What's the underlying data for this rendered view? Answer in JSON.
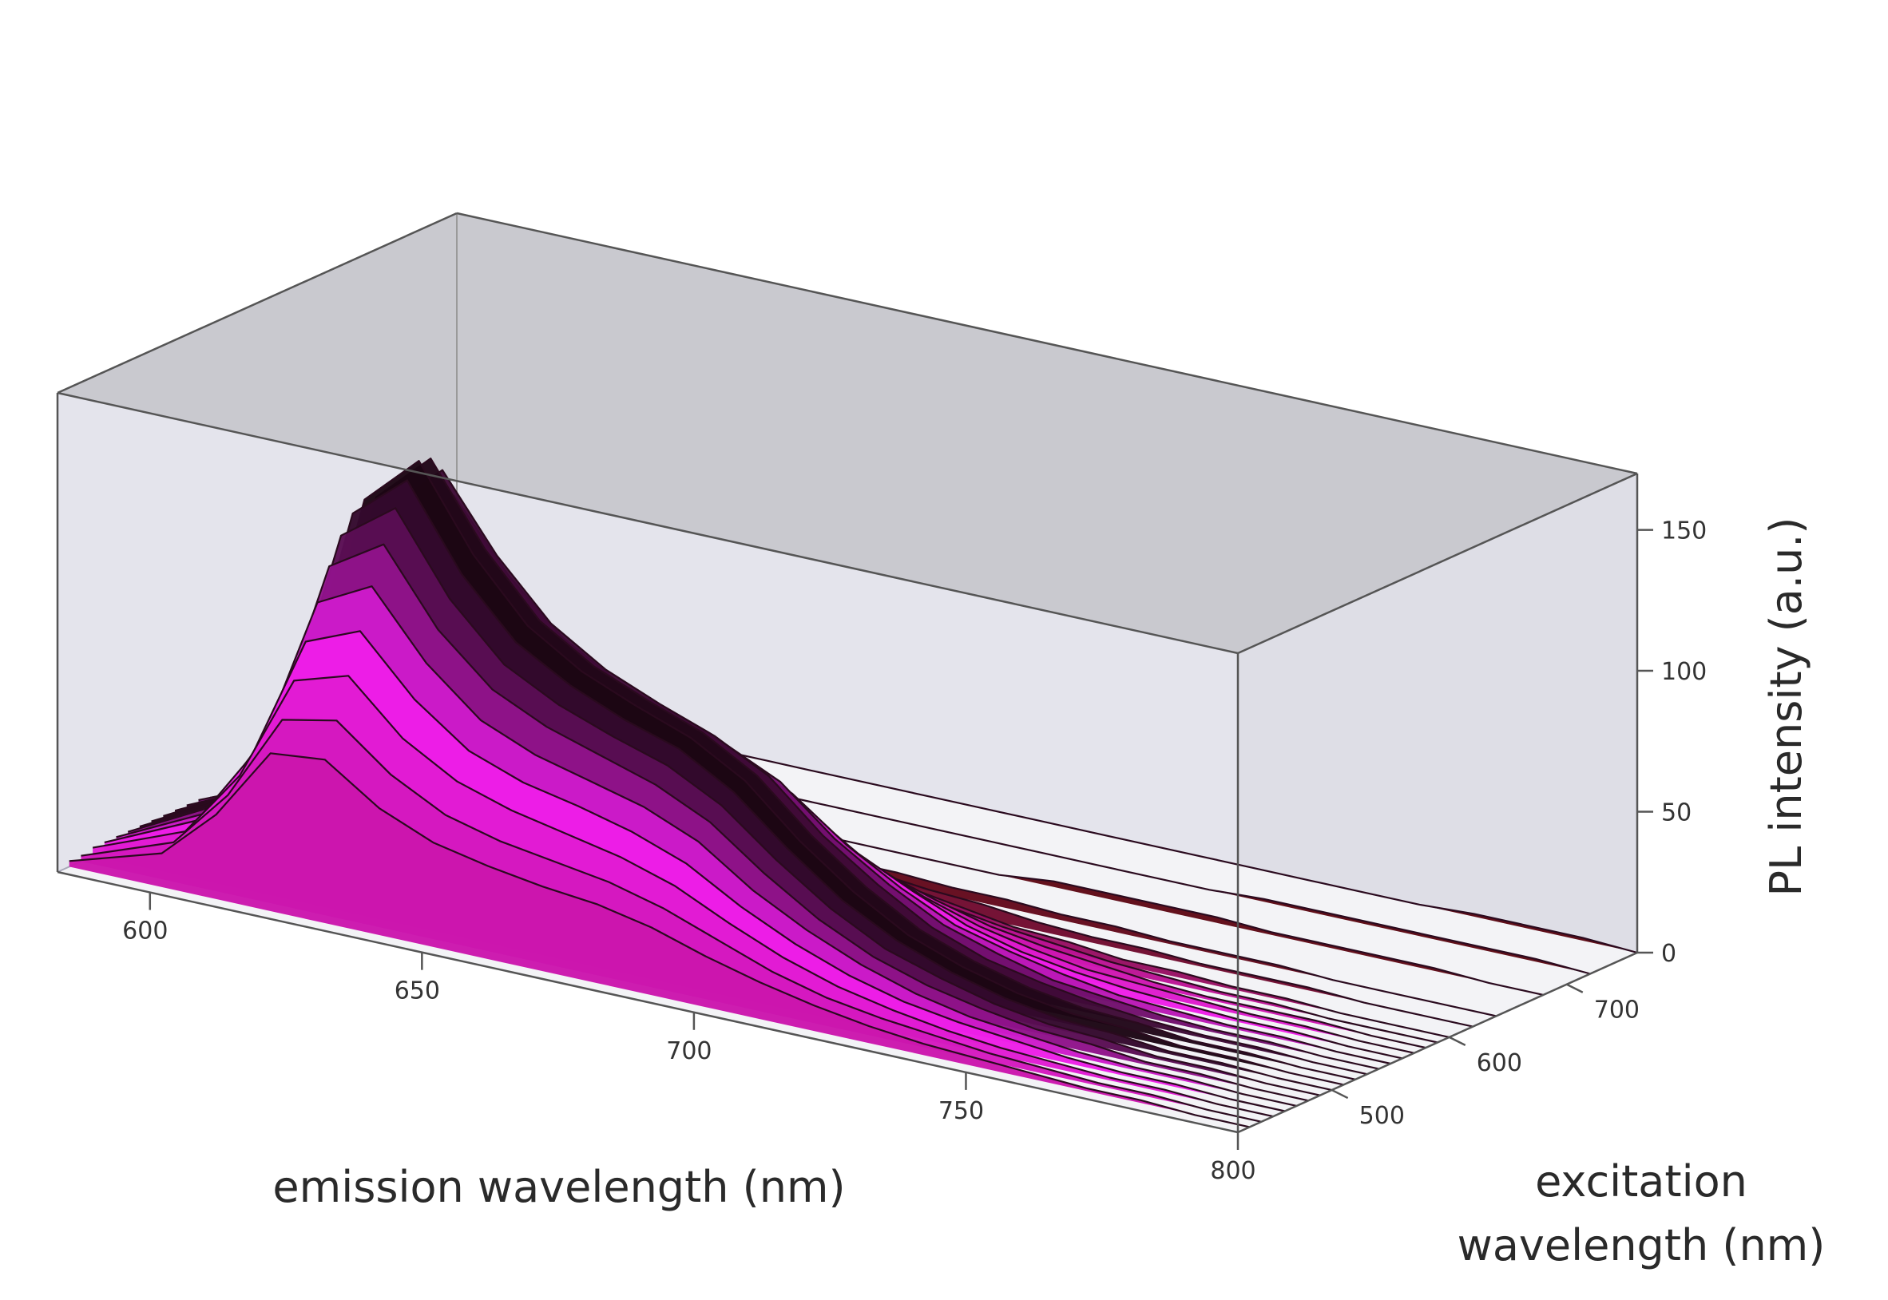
{
  "chart_data": {
    "type": "surface",
    "x_axis": {
      "title": "emission wavelength (nm)",
      "range": [
        583,
        800
      ],
      "ticks": [
        600,
        650,
        700,
        750,
        800
      ],
      "tick_labels": [
        "600",
        "650",
        "700",
        "750",
        "800"
      ]
    },
    "y_axis": {
      "title": "excitation wavelength (nm)",
      "title_lines": [
        "excitation",
        "wavelength (nm)"
      ],
      "range": [
        420,
        760
      ],
      "ticks": [
        500,
        600,
        700
      ],
      "tick_labels": [
        "500",
        "600",
        "700"
      ]
    },
    "z_axis": {
      "title": "PL intensity (a.u.)",
      "range": [
        0,
        170
      ],
      "ticks": [
        0,
        50,
        100,
        150
      ],
      "tick_labels": [
        "0",
        "50",
        "100",
        "150"
      ]
    },
    "series": [
      {
        "excitation": 430,
        "emission": [
          583,
          600,
          610,
          620,
          630,
          640,
          650,
          660,
          670,
          680,
          690,
          700,
          710,
          720,
          730,
          740,
          750,
          760,
          770,
          780,
          790,
          800
        ],
        "intensity": [
          2,
          12,
          30,
          56,
          58,
          45,
          37,
          33,
          30,
          28,
          24,
          18,
          13,
          9,
          6,
          4,
          3,
          2,
          1,
          1,
          0,
          0
        ]
      },
      {
        "excitation": 440,
        "emission": [
          583,
          600,
          610,
          620,
          630,
          640,
          650,
          660,
          670,
          680,
          690,
          700,
          710,
          720,
          730,
          740,
          750,
          760,
          770,
          780,
          790,
          800
        ],
        "intensity": [
          2,
          14,
          35,
          66,
          70,
          55,
          45,
          40,
          37,
          34,
          29,
          22,
          15,
          10,
          7,
          5,
          3,
          2,
          1,
          1,
          0,
          0
        ]
      },
      {
        "excitation": 450,
        "emission": [
          583,
          600,
          610,
          620,
          630,
          640,
          650,
          660,
          670,
          680,
          690,
          700,
          710,
          720,
          730,
          740,
          750,
          760,
          770,
          780,
          790,
          800
        ],
        "intensity": [
          3,
          16,
          40,
          78,
          84,
          66,
          55,
          49,
          45,
          41,
          35,
          26,
          18,
          12,
          8,
          5,
          3,
          2,
          1,
          1,
          0,
          0
        ]
      },
      {
        "excitation": 460,
        "emission": [
          583,
          600,
          610,
          620,
          630,
          640,
          650,
          660,
          670,
          680,
          690,
          700,
          710,
          720,
          730,
          740,
          750,
          760,
          770,
          780,
          790,
          800
        ],
        "intensity": [
          3,
          18,
          45,
          90,
          98,
          78,
          64,
          57,
          53,
          48,
          41,
          30,
          21,
          14,
          9,
          6,
          4,
          2,
          1,
          1,
          0,
          0
        ]
      },
      {
        "excitation": 470,
        "emission": [
          583,
          600,
          610,
          620,
          630,
          640,
          650,
          660,
          670,
          680,
          690,
          700,
          710,
          720,
          730,
          740,
          750,
          760,
          770,
          780,
          790,
          800
        ],
        "intensity": [
          3,
          19,
          49,
          102,
          112,
          89,
          73,
          65,
          60,
          55,
          47,
          34,
          24,
          16,
          10,
          6,
          4,
          2,
          1,
          1,
          0,
          0
        ]
      },
      {
        "excitation": 480,
        "emission": [
          583,
          600,
          610,
          620,
          630,
          640,
          650,
          660,
          670,
          680,
          690,
          700,
          710,
          720,
          730,
          740,
          750,
          760,
          770,
          780,
          790,
          800
        ],
        "intensity": [
          3,
          20,
          52,
          113,
          125,
          99,
          82,
          73,
          67,
          61,
          52,
          38,
          26,
          17,
          11,
          7,
          4,
          3,
          1,
          1,
          0,
          0
        ]
      },
      {
        "excitation": 490,
        "emission": [
          583,
          600,
          610,
          620,
          630,
          640,
          650,
          660,
          670,
          680,
          690,
          700,
          710,
          720,
          730,
          740,
          750,
          760,
          770,
          780,
          790,
          800
        ],
        "intensity": [
          3,
          20,
          54,
          122,
          136,
          108,
          89,
          79,
          72,
          66,
          56,
          41,
          28,
          18,
          12,
          7,
          4,
          3,
          1,
          1,
          0,
          0
        ]
      },
      {
        "excitation": 500,
        "emission": [
          583,
          600,
          610,
          620,
          630,
          640,
          650,
          660,
          670,
          680,
          690,
          700,
          710,
          720,
          730,
          740,
          750,
          760,
          770,
          780,
          790,
          800
        ],
        "intensity": [
          3,
          20,
          55,
          128,
          144,
          115,
          95,
          84,
          76,
          70,
          59,
          43,
          29,
          19,
          12,
          7,
          4,
          3,
          1,
          1,
          0,
          0
        ]
      },
      {
        "excitation": 510,
        "emission": [
          583,
          600,
          610,
          620,
          630,
          640,
          650,
          660,
          670,
          680,
          690,
          700,
          710,
          720,
          730,
          740,
          750,
          760,
          770,
          780,
          790,
          800
        ],
        "intensity": [
          3,
          20,
          55,
          131,
          149,
          120,
          99,
          87,
          79,
          72,
          61,
          44,
          30,
          19,
          12,
          7,
          4,
          3,
          1,
          1,
          0,
          0
        ]
      },
      {
        "excitation": 520,
        "emission": [
          583,
          600,
          610,
          620,
          630,
          640,
          650,
          660,
          670,
          680,
          690,
          700,
          710,
          720,
          730,
          740,
          750,
          760,
          770,
          780,
          790,
          800
        ],
        "intensity": [
          3,
          19,
          53,
          130,
          148,
          120,
          99,
          87,
          79,
          72,
          61,
          44,
          30,
          19,
          12,
          7,
          4,
          3,
          1,
          1,
          0,
          0
        ]
      },
      {
        "excitation": 530,
        "emission": [
          583,
          600,
          610,
          620,
          630,
          640,
          650,
          660,
          670,
          680,
          690,
          700,
          710,
          720,
          730,
          740,
          750,
          760,
          770,
          780,
          790,
          800
        ],
        "intensity": [
          3,
          18,
          50,
          124,
          142,
          116,
          96,
          84,
          76,
          69,
          59,
          42,
          29,
          18,
          11,
          7,
          4,
          2,
          1,
          1,
          0,
          0
        ]
      },
      {
        "excitation": 540,
        "emission": [
          583,
          600,
          610,
          620,
          630,
          640,
          650,
          660,
          670,
          680,
          690,
          700,
          710,
          720,
          730,
          740,
          750,
          760,
          770,
          780,
          790,
          800
        ],
        "intensity": [
          3,
          17,
          46,
          114,
          131,
          107,
          89,
          78,
          71,
          64,
          55,
          39,
          27,
          17,
          11,
          6,
          4,
          2,
          1,
          1,
          0,
          0
        ]
      },
      {
        "excitation": 550,
        "emission": [
          583,
          600,
          610,
          620,
          630,
          640,
          650,
          660,
          670,
          680,
          690,
          700,
          710,
          720,
          730,
          740,
          750,
          760,
          770,
          780,
          790,
          800
        ],
        "intensity": [
          2,
          15,
          41,
          101,
          116,
          95,
          79,
          70,
          63,
          57,
          49,
          35,
          24,
          15,
          10,
          6,
          3,
          2,
          1,
          1,
          0,
          0
        ]
      },
      {
        "excitation": 560,
        "emission": [
          583,
          600,
          610,
          620,
          630,
          640,
          650,
          660,
          670,
          680,
          690,
          700,
          710,
          720,
          730,
          740,
          750,
          760,
          770,
          780,
          790,
          800
        ],
        "intensity": [
          2,
          13,
          35,
          86,
          99,
          81,
          68,
          60,
          54,
          49,
          42,
          30,
          21,
          13,
          8,
          5,
          3,
          2,
          1,
          1,
          0,
          0
        ]
      },
      {
        "excitation": 570,
        "emission": [
          583,
          600,
          610,
          620,
          630,
          640,
          650,
          660,
          670,
          680,
          690,
          700,
          710,
          720,
          730,
          740,
          750,
          760,
          770,
          780,
          790,
          800
        ],
        "intensity": [
          2,
          10,
          28,
          69,
          80,
          66,
          55,
          49,
          44,
          40,
          34,
          25,
          17,
          11,
          7,
          4,
          3,
          2,
          1,
          1,
          0,
          0
        ]
      },
      {
        "excitation": 580,
        "emission": [
          583,
          600,
          610,
          620,
          630,
          640,
          650,
          660,
          670,
          680,
          690,
          700,
          710,
          720,
          730,
          740,
          750,
          760,
          770,
          780,
          790,
          800
        ],
        "intensity": [
          1,
          8,
          21,
          52,
          61,
          51,
          43,
          38,
          35,
          31,
          27,
          20,
          14,
          9,
          6,
          4,
          2,
          1,
          1,
          1,
          0,
          0
        ]
      },
      {
        "excitation": 590,
        "emission": [
          583,
          600,
          610,
          620,
          630,
          640,
          650,
          660,
          670,
          680,
          690,
          700,
          710,
          720,
          730,
          740,
          750,
          760,
          770,
          780,
          790,
          800
        ],
        "intensity": [
          0,
          0,
          0,
          36,
          43,
          36,
          31,
          28,
          26,
          23,
          20,
          15,
          10,
          7,
          5,
          3,
          2,
          1,
          1,
          0,
          0,
          0
        ]
      },
      {
        "excitation": 600,
        "emission": [
          583,
          600,
          610,
          620,
          630,
          640,
          650,
          660,
          670,
          680,
          690,
          700,
          710,
          720,
          730,
          740,
          750,
          760,
          770,
          780,
          790,
          800
        ],
        "intensity": [
          0,
          0,
          0,
          0,
          27,
          24,
          21,
          19,
          18,
          16,
          14,
          11,
          8,
          5,
          4,
          2,
          2,
          1,
          1,
          0,
          0,
          0
        ]
      },
      {
        "excitation": 620,
        "emission": [
          583,
          600,
          610,
          620,
          630,
          640,
          650,
          660,
          670,
          680,
          690,
          700,
          710,
          720,
          730,
          740,
          750,
          760,
          770,
          780,
          790,
          800
        ],
        "intensity": [
          0,
          0,
          0,
          0,
          0,
          0,
          10,
          10,
          9,
          9,
          8,
          6,
          5,
          3,
          2,
          2,
          1,
          1,
          1,
          0,
          0,
          0
        ]
      },
      {
        "excitation": 640,
        "emission": [
          583,
          600,
          610,
          620,
          630,
          640,
          650,
          660,
          670,
          680,
          690,
          700,
          710,
          720,
          730,
          740,
          750,
          760,
          770,
          780,
          790,
          800
        ],
        "intensity": [
          0,
          0,
          0,
          0,
          0,
          0,
          0,
          0,
          4,
          4,
          4,
          3,
          3,
          2,
          2,
          1,
          1,
          1,
          0,
          0,
          0,
          0
        ]
      },
      {
        "excitation": 680,
        "emission": [
          583,
          600,
          610,
          620,
          630,
          640,
          650,
          660,
          670,
          680,
          690,
          700,
          710,
          720,
          730,
          740,
          750,
          760,
          770,
          780,
          790,
          800
        ],
        "intensity": [
          0,
          0,
          0,
          0,
          0,
          0,
          0,
          0,
          0,
          0,
          0,
          0,
          2,
          2,
          2,
          2,
          1,
          1,
          1,
          1,
          0,
          0
        ]
      },
      {
        "excitation": 720,
        "emission": [
          583,
          600,
          610,
          620,
          630,
          640,
          650,
          660,
          670,
          680,
          690,
          700,
          710,
          720,
          730,
          740,
          750,
          760,
          770,
          780,
          790,
          800
        ],
        "intensity": [
          0,
          0,
          0,
          0,
          0,
          0,
          0,
          0,
          0,
          0,
          0,
          0,
          0,
          0,
          0,
          1,
          1,
          1,
          1,
          1,
          1,
          0
        ]
      },
      {
        "excitation": 760,
        "emission": [
          583,
          600,
          610,
          620,
          630,
          640,
          650,
          660,
          670,
          680,
          690,
          700,
          710,
          720,
          730,
          740,
          750,
          760,
          770,
          780,
          790,
          800
        ],
        "intensity": [
          0,
          0,
          0,
          0,
          0,
          0,
          0,
          0,
          0,
          0,
          0,
          0,
          0,
          0,
          0,
          0,
          0,
          0,
          1,
          1,
          1,
          0
        ]
      }
    ],
    "colors": {
      "low": "#5a0810",
      "mid": "#c0149a",
      "high": "#f21ff0",
      "peak": "#1c0614",
      "back_wall": "#e4e4ec",
      "top_wall": "#c9c9cf",
      "box_edge": "#555555"
    },
    "grid": false,
    "legend": "none"
  }
}
